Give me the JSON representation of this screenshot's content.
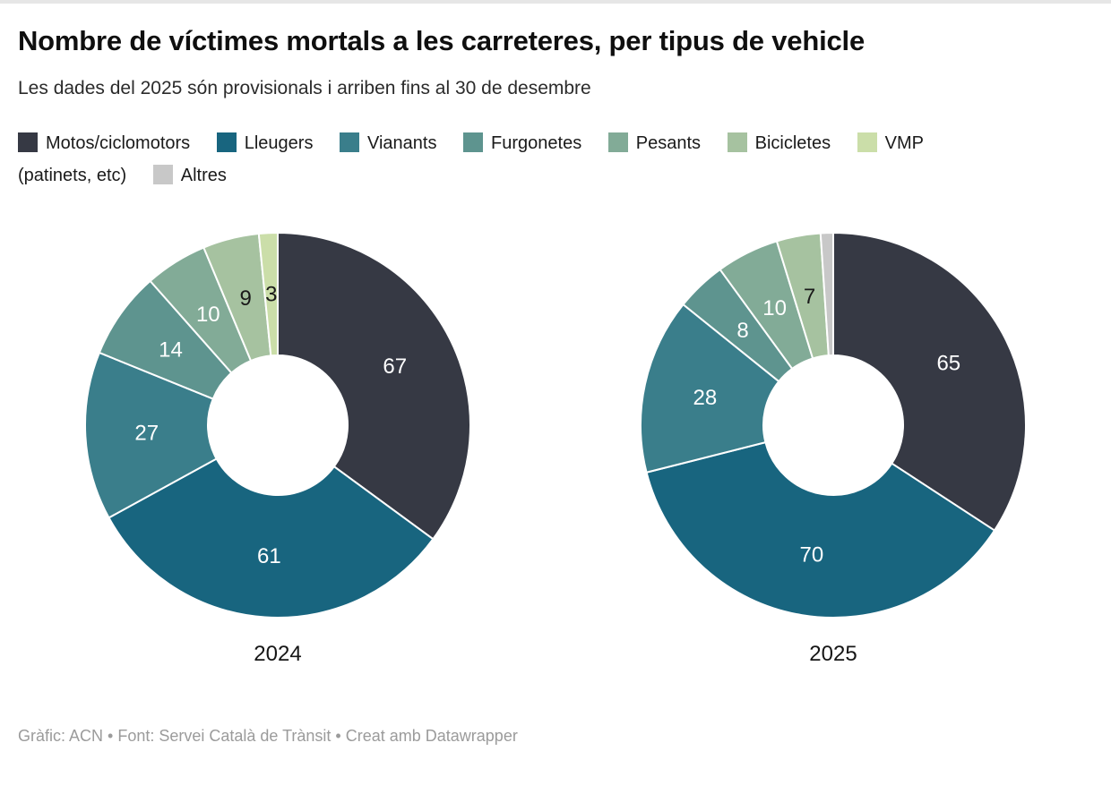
{
  "header": {
    "title": "Nombre de víctimes mortals a les carreteres, per tipus de vehicle",
    "subtitle": "Les dades del 2025 són provisionals i arriben fins al 30 de desembre"
  },
  "chart_data": {
    "type": "pie",
    "variant": "donut",
    "legend_position": "top",
    "start_angle_deg": 0,
    "direction": "clockwise",
    "categories": [
      "Motos/ciclomotors",
      "Lleugers",
      "Vianants",
      "Furgonetes",
      "Pesants",
      "Bicicletes",
      "VMP (patinets, etc)",
      "Altres"
    ],
    "keys": [
      "motos-ciclomotors",
      "lleugers",
      "vianants",
      "furgonetes",
      "pesants",
      "bicicletes",
      "vmp",
      "altres"
    ],
    "colors": [
      "#363944",
      "#18657f",
      "#3a7e8b",
      "#5e948f",
      "#82ab97",
      "#a6c2a0",
      "#cbdea9",
      "#c8c8c8"
    ],
    "charts": [
      {
        "label": "2024",
        "values": [
          67,
          61,
          27,
          14,
          10,
          9,
          3,
          0
        ]
      },
      {
        "label": "2025",
        "values": [
          65,
          70,
          28,
          8,
          10,
          7,
          0,
          2
        ]
      }
    ],
    "label_min_value": 3,
    "light_slice_indices": [
      5,
      6,
      7
    ],
    "slice_text_color_on_dark": "#ffffff",
    "slice_text_color_on_light": "#1a1a1a"
  },
  "footer": {
    "byline": "Gràfic: ACN • Font: Servei Català de Trànsit • Creat amb Datawrapper"
  }
}
